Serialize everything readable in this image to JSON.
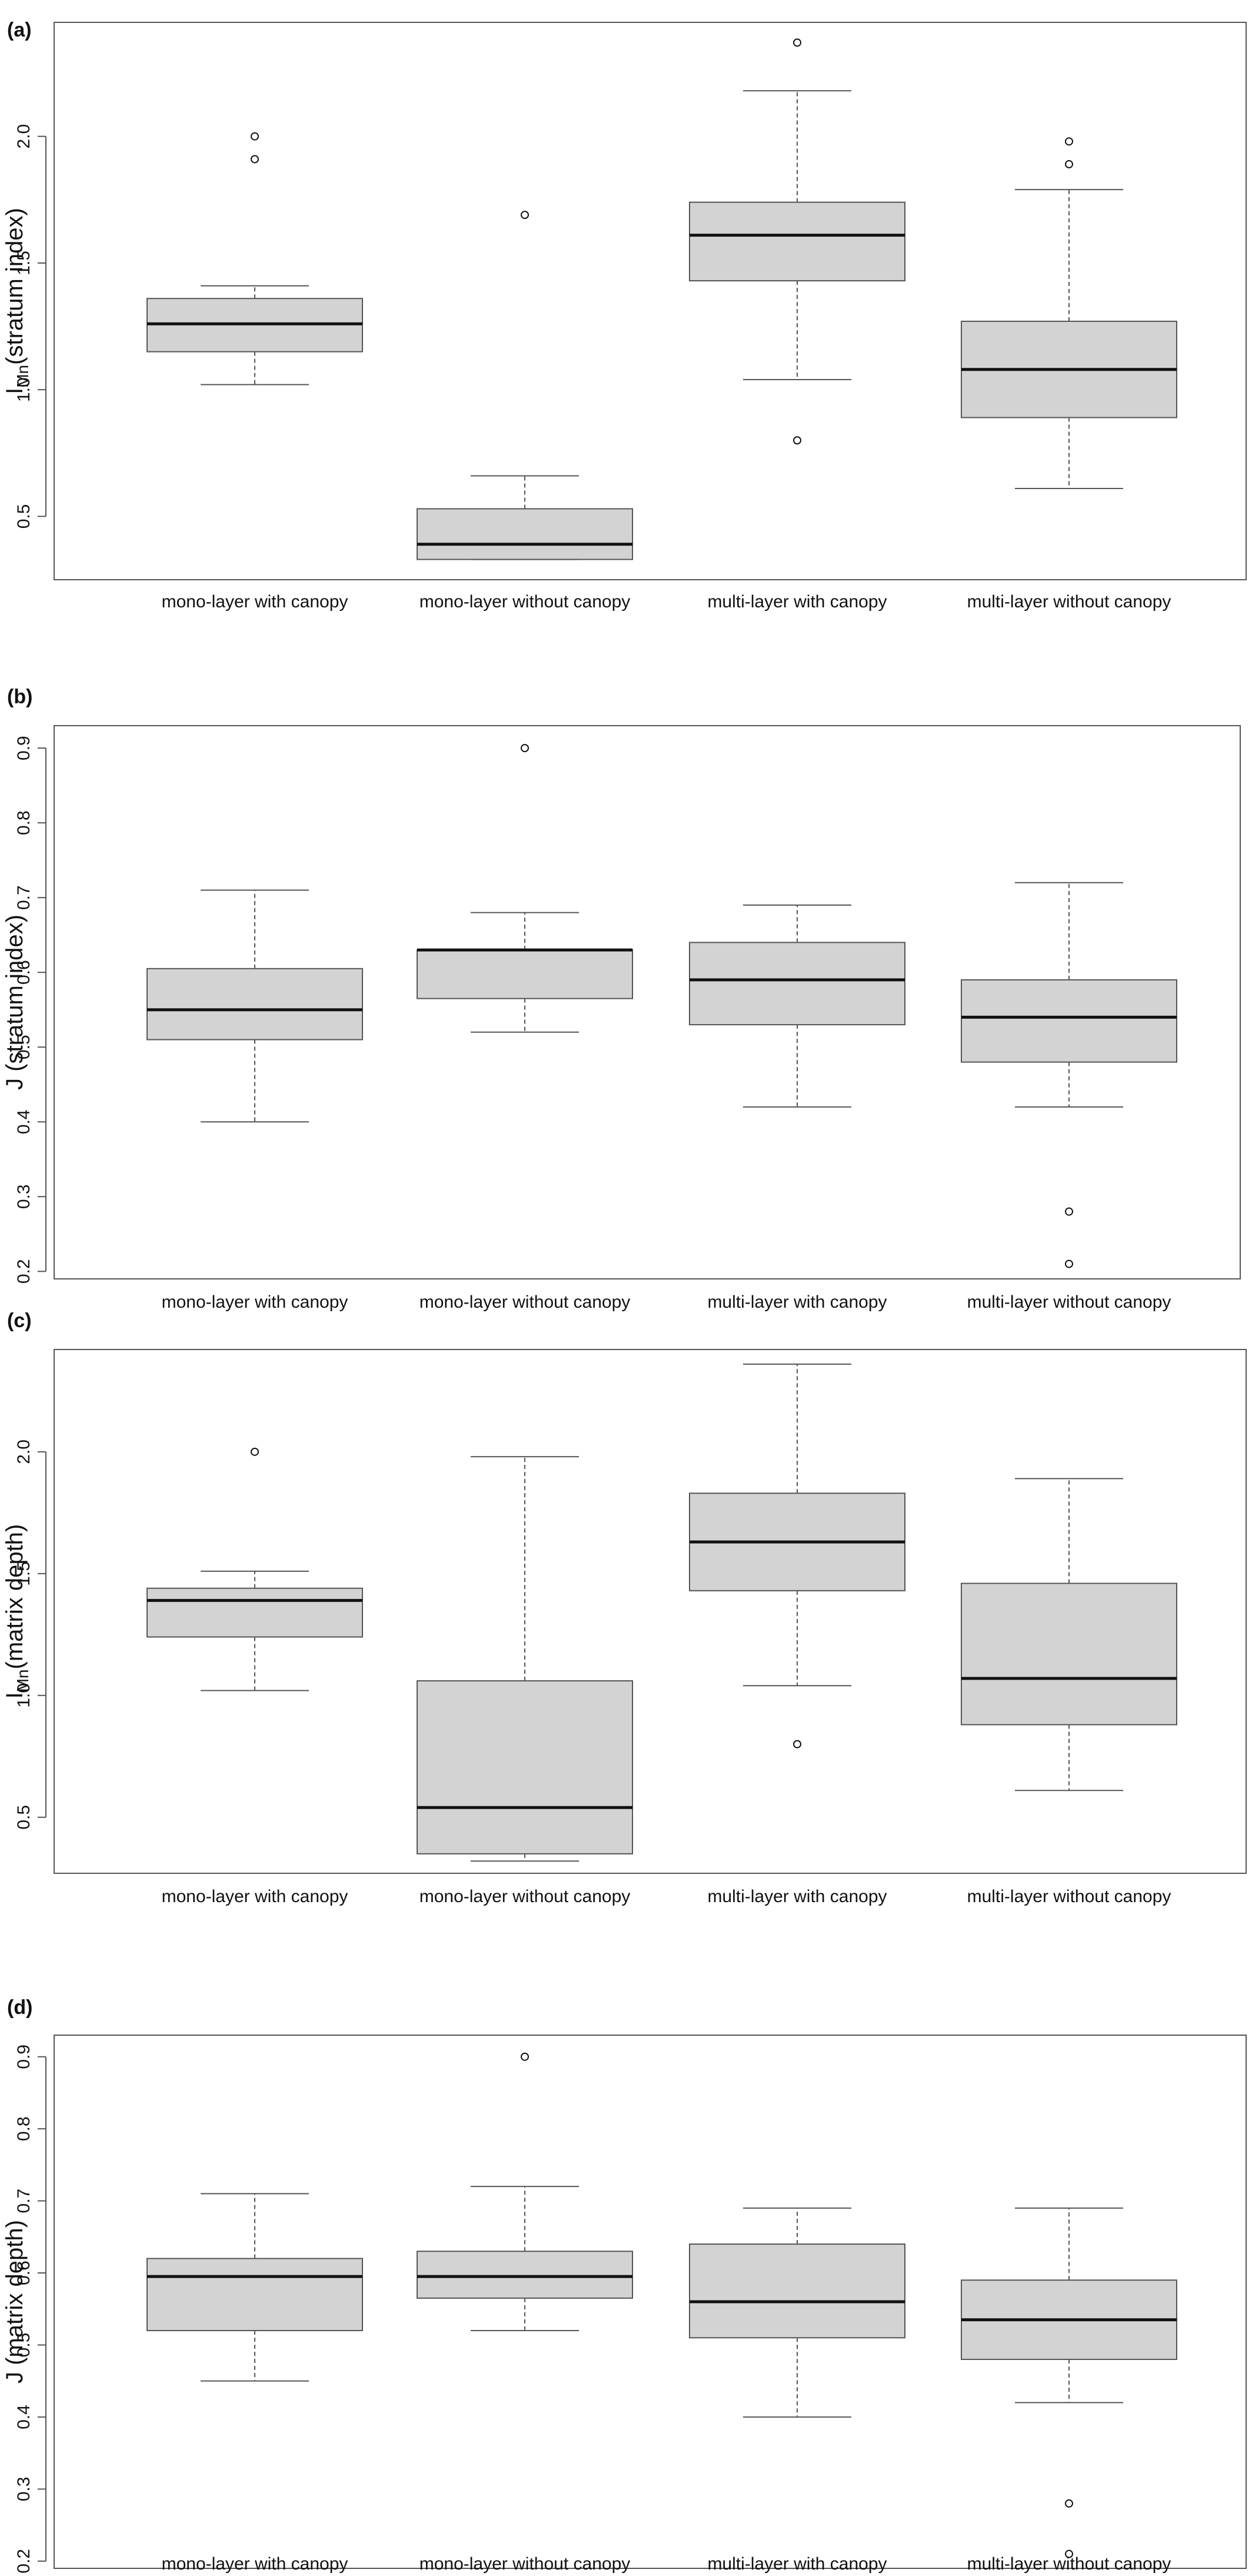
{
  "colors": {
    "box_fill": "#d3d3d3",
    "box_stroke": "#555555",
    "median": "#111111",
    "whisker": "#555555",
    "frame": "#555555"
  },
  "chart_data": [
    {
      "panel_label": "(a)",
      "type": "boxplot",
      "ylabel": {
        "base": "I",
        "sub": "Mn",
        "rest": "(stratum index)"
      },
      "ylim": [
        0.25,
        2.45
      ],
      "yticks": [
        0.5,
        1.0,
        1.5,
        2.0
      ],
      "ytick_labels": [
        "0.5",
        "1.0",
        "1.5",
        "2.0"
      ],
      "categories": [
        "mono-layer with canopy",
        "mono-layer without canopy",
        "multi-layer with canopy",
        "multi-layer without canopy"
      ],
      "boxes": [
        {
          "whisker_low": 1.02,
          "q1": 1.15,
          "median": 1.26,
          "q3": 1.36,
          "whisker_high": 1.41,
          "outliers": [
            1.91,
            2.0
          ]
        },
        {
          "whisker_low": 0.33,
          "q1": 0.33,
          "median": 0.39,
          "q3": 0.53,
          "whisker_high": 0.66,
          "outliers": [
            1.69
          ]
        },
        {
          "whisker_low": 1.04,
          "q1": 1.43,
          "median": 1.61,
          "q3": 1.74,
          "whisker_high": 2.18,
          "outliers": [
            0.8,
            2.37
          ]
        },
        {
          "whisker_low": 0.61,
          "q1": 0.89,
          "median": 1.08,
          "q3": 1.27,
          "whisker_high": 1.79,
          "outliers": [
            1.89,
            1.98
          ]
        }
      ]
    },
    {
      "panel_label": "(b)",
      "type": "boxplot",
      "ylabel": {
        "base": "J (stratum index)",
        "sub": "",
        "rest": ""
      },
      "ylim": [
        0.19,
        0.93
      ],
      "yticks": [
        0.2,
        0.3,
        0.4,
        0.5,
        0.6,
        0.7,
        0.8,
        0.9
      ],
      "ytick_labels": [
        "0.2",
        "0.3",
        "0.4",
        "0.5",
        "0.6",
        "0.7",
        "0.8",
        "0.9"
      ],
      "categories": [
        "mono-layer with canopy",
        "mono-layer without canopy",
        "multi-layer with canopy",
        "multi-layer without canopy"
      ],
      "boxes": [
        {
          "whisker_low": 0.4,
          "q1": 0.51,
          "median": 0.55,
          "q3": 0.605,
          "whisker_high": 0.71,
          "outliers": []
        },
        {
          "whisker_low": 0.52,
          "q1": 0.565,
          "median": 0.63,
          "q3": 0.63,
          "whisker_high": 0.68,
          "outliers": [
            0.9
          ]
        },
        {
          "whisker_low": 0.42,
          "q1": 0.53,
          "median": 0.59,
          "q3": 0.64,
          "whisker_high": 0.69,
          "outliers": []
        },
        {
          "whisker_low": 0.42,
          "q1": 0.48,
          "median": 0.54,
          "q3": 0.59,
          "whisker_high": 0.72,
          "outliers": [
            0.21,
            0.28
          ]
        }
      ]
    },
    {
      "panel_label": "(c)",
      "type": "boxplot",
      "ylabel": {
        "base": "I",
        "sub": "Mn",
        "rest": "(matrix depth)"
      },
      "ylim": [
        0.27,
        2.42
      ],
      "yticks": [
        0.5,
        1.0,
        1.5,
        2.0
      ],
      "ytick_labels": [
        "0.5",
        "1.0",
        "1.5",
        "2.0"
      ],
      "categories": [
        "mono-layer with canopy",
        "mono-layer without canopy",
        "multi-layer with canopy",
        "multi-layer without canopy"
      ],
      "boxes": [
        {
          "whisker_low": 1.02,
          "q1": 1.24,
          "median": 1.39,
          "q3": 1.44,
          "whisker_high": 1.51,
          "outliers": [
            2.0
          ]
        },
        {
          "whisker_low": 0.32,
          "q1": 0.35,
          "median": 0.54,
          "q3": 1.06,
          "whisker_high": 1.98,
          "outliers": []
        },
        {
          "whisker_low": 1.04,
          "q1": 1.43,
          "median": 1.63,
          "q3": 1.83,
          "whisker_high": 2.36,
          "outliers": [
            0.8
          ]
        },
        {
          "whisker_low": 0.61,
          "q1": 0.88,
          "median": 1.07,
          "q3": 1.46,
          "whisker_high": 1.89,
          "outliers": []
        }
      ]
    },
    {
      "panel_label": "(d)",
      "type": "boxplot",
      "ylabel": {
        "base": "J (matrix depth)",
        "sub": "",
        "rest": ""
      },
      "ylim": [
        0.19,
        0.93
      ],
      "yticks": [
        0.2,
        0.3,
        0.4,
        0.5,
        0.6,
        0.7,
        0.8,
        0.9
      ],
      "ytick_labels": [
        "0.2",
        "0.3",
        "0.4",
        "0.5",
        "0.6",
        "0.7",
        "0.8",
        "0.9"
      ],
      "categories": [
        "mono-layer with canopy",
        "mono-layer without canopy",
        "multi-layer with canopy",
        "multi-layer without canopy"
      ],
      "boxes": [
        {
          "whisker_low": 0.45,
          "q1": 0.52,
          "median": 0.595,
          "q3": 0.62,
          "whisker_high": 0.71,
          "outliers": []
        },
        {
          "whisker_low": 0.52,
          "q1": 0.565,
          "median": 0.595,
          "q3": 0.63,
          "whisker_high": 0.72,
          "outliers": [
            0.9
          ]
        },
        {
          "whisker_low": 0.4,
          "q1": 0.51,
          "median": 0.56,
          "q3": 0.64,
          "whisker_high": 0.69,
          "outliers": []
        },
        {
          "whisker_low": 0.42,
          "q1": 0.48,
          "median": 0.535,
          "q3": 0.59,
          "whisker_high": 0.69,
          "outliers": [
            0.21,
            0.28
          ]
        }
      ]
    }
  ]
}
